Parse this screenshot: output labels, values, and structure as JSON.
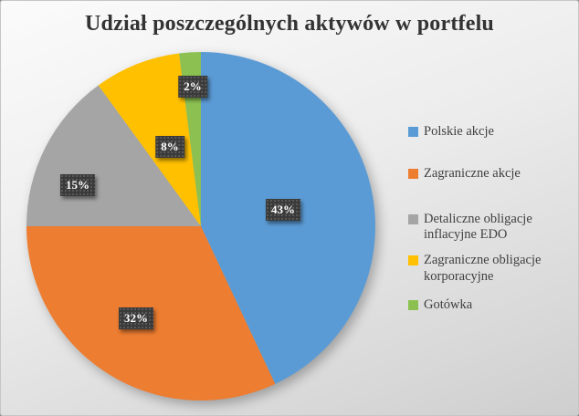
{
  "title": "Udział poszczególnych aktywów w portfelu",
  "chart_data": {
    "type": "pie",
    "title": "Udział poszczególnych aktywów w portfelu",
    "labels": [
      "Polskie akcje",
      "Zagraniczne akcje",
      "Detaliczne obligacje inflacyjne EDO",
      "Zagraniczne obligacje korporacyjne",
      "Gotówka"
    ],
    "values": [
      43,
      32,
      15,
      8,
      2
    ],
    "unit": "%",
    "data_labels": [
      "43%",
      "32%",
      "15%",
      "8%",
      "2%"
    ],
    "colors": [
      "#5B9BD5",
      "#ED7D31",
      "#A5A5A5",
      "#FFC000",
      "#8CC152"
    ],
    "legend_position": "right",
    "start_angle_deg": 0,
    "direction": "clockwise",
    "data_label_style": {
      "background": "#3A3A3A",
      "text_color": "#FFFFFF",
      "pattern": "dotted"
    }
  }
}
